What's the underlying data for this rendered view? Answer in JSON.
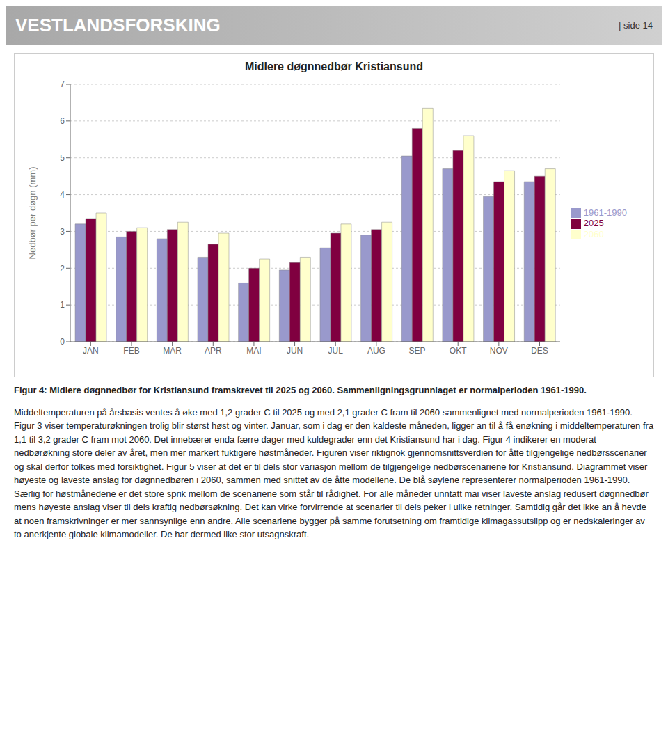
{
  "chart_data": {
    "type": "bar",
    "title": "Midlere døgnnedbør Kristiansund",
    "y_label": "Nedbør per døgn (mm)",
    "categories": [
      "JAN",
      "FEB",
      "MAR",
      "APR",
      "MAI",
      "JUN",
      "JUL",
      "AUG",
      "SEP",
      "OKT",
      "NOV",
      "DES"
    ],
    "series": [
      {
        "name": "1961-1990",
        "color": "#9999CC",
        "values": [
          3.2,
          2.85,
          2.8,
          2.3,
          1.6,
          1.95,
          2.55,
          2.9,
          5.05,
          4.7,
          3.95,
          4.35
        ]
      },
      {
        "name": "2025",
        "color": "#800040",
        "values": [
          3.35,
          3.0,
          3.05,
          2.65,
          2.0,
          2.15,
          2.95,
          3.05,
          5.8,
          5.2,
          4.35,
          4.5
        ]
      },
      {
        "name": "2060",
        "color": "#FFFFCC",
        "values": [
          3.5,
          3.1,
          3.25,
          2.95,
          2.25,
          2.3,
          3.2,
          3.25,
          6.35,
          5.6,
          4.65,
          4.7
        ]
      }
    ],
    "ylim": [
      0,
      7
    ],
    "yticks": [
      0,
      1,
      2,
      3,
      4,
      5,
      6,
      7
    ],
    "grid": true,
    "legend": "right",
    "annotations": [
      "VESTLANDSFORSKING",
      "| side 14",
      "Figur 4: Midlere døgnnedbør for Kristiansund framskrevet til 2025 og 2060. Sammenligningsgrunnlaget er normalperioden 1961-1990.",
      "Middeltemperaturen på årsbasis ventes å øke med 1,2 grader C til 2025 og med 2,1 grader C fram til 2060 sammenlignet med normalperioden 1961-1990. Figur 3 viser temperaturøkningen trolig blir størst høst og vinter. Januar, som i dag er den kaldeste måneden, ligger an til å få enøkning i middeltemperaturen fra 1,1 til 3,2 grader C fram mot 2060. Det innebærer enda færre dager med kuldegrader enn det Kristiansund har i dag. Figur 4 indikerer en moderat nedbørøkning store deler av året, men mer markert fuktigere høstmåneder. Figuren viser riktignok gjennomsnittsverdien for åtte tilgjengelige nedbørsscenarier og skal derfor tolkes med forsiktighet. Figur 5 viser at det er til dels stor variasjon mellom de tilgjengelige nedbørscenariene for Kristiansund. Diagrammet viser høyeste og laveste anslag for døgnnedbøren i 2060, sammen med snittet av de åtte modellene. De blå søylene representerer normalperioden 1961-1990. Særlig for høstmånedene er det store sprik mellom de scenariene som står til rådighet. For alle måneder unntatt mai viser laveste anslag redusert døgnnedbør mens høyeste anslag viser til dels kraftig nedbørsøkning. Det kan virke forvirrende at scenarier til dels peker i ulike retninger. Samtidig går det ikke an å hevde at noen framskrivninger er mer sannsynlige enn andre. Alle scenariene bygger på samme forutsetning om framtidige klimagassutslipp og er nedskaleringer av to anerkjente globale klimamodeller. De har dermed like stor utsagnskraft."
    ]
  }
}
